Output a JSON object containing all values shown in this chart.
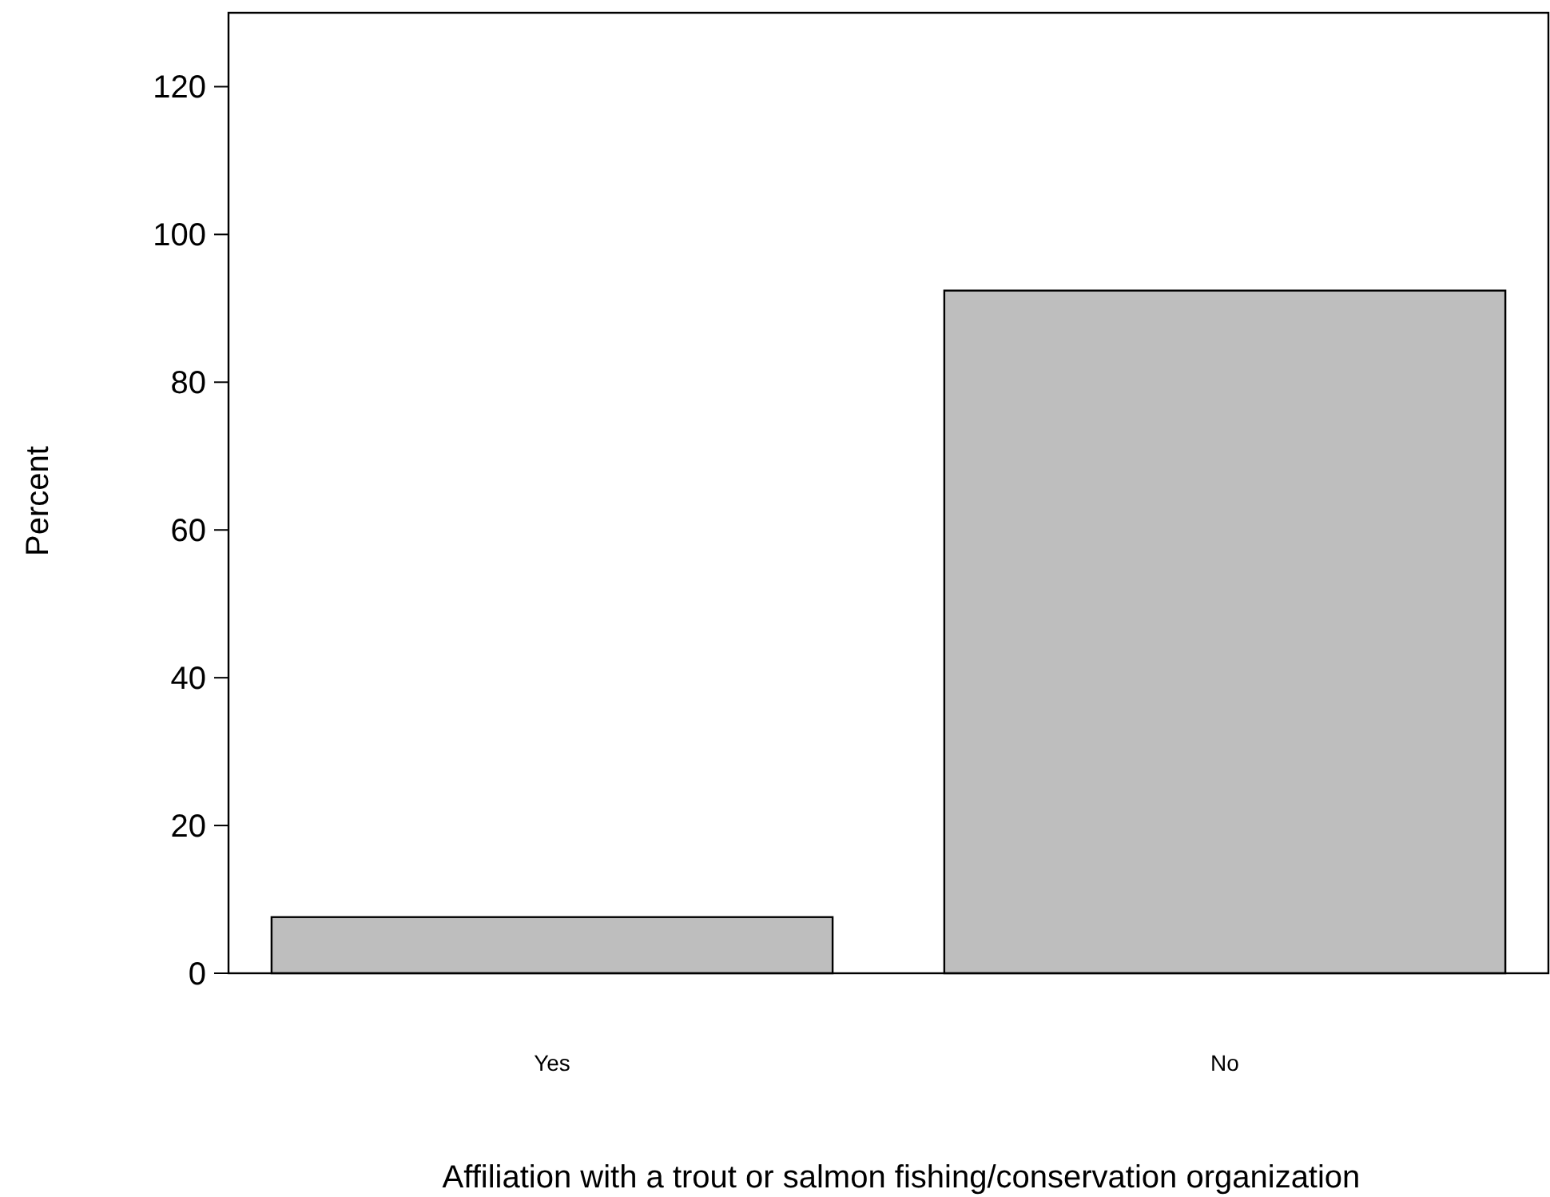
{
  "chart_data": {
    "type": "bar",
    "xlabel": "Affiliation with a trout or salmon fishing/conservation organization",
    "ylabel": "Percent",
    "categories": [
      "Yes",
      "No"
    ],
    "values": [
      7.6,
      92.4
    ],
    "color": "#bebebe",
    "ylim": [
      0,
      130
    ],
    "yticks": [
      0,
      20,
      40,
      60,
      80,
      100,
      120
    ],
    "grid": false
  }
}
